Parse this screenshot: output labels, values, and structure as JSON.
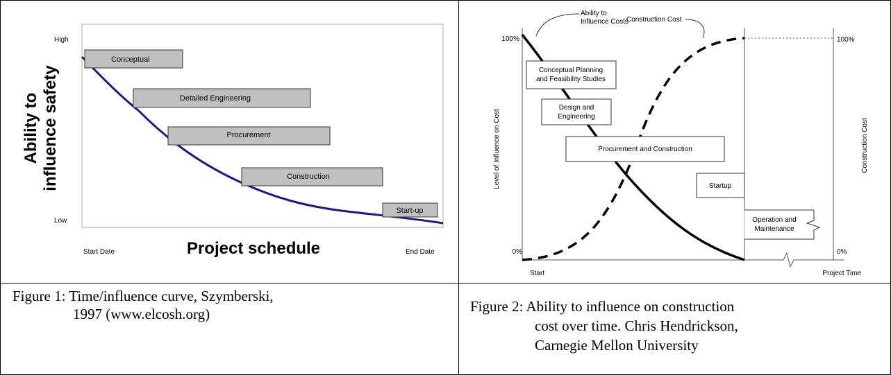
{
  "figure1": {
    "y_high": "High",
    "y_low": "Low",
    "y_label": [
      "Ability to",
      "influence safety"
    ],
    "x_start": "Start Date",
    "x_label": "Project schedule",
    "x_end": "End Date",
    "phases": [
      "Conceptual",
      "Detailed Engineering",
      "Procurement",
      "Construction",
      "Start-up"
    ],
    "caption": [
      "Figure 1: Time/influence curve, Szymberski,",
      "1997 (www.elcosh.org)"
    ]
  },
  "figure2": {
    "left_top": "100%",
    "left_bottom": "0%",
    "right_top": "100%",
    "right_bottom": "0%",
    "y_label": "Level of Influence on Cost",
    "y2_label": "Construction Cost",
    "x_start": "Start",
    "x_end": "Project Time",
    "annotation_influence": [
      "Ability to",
      "Influence Costs"
    ],
    "annotation_cost": "Construction Cost",
    "phases": [
      [
        "Conceptual Planning",
        "and Feasibility Studies"
      ],
      [
        "Design and",
        "Engineering"
      ],
      [
        "Procurement and Construction"
      ],
      [
        "Startup"
      ],
      [
        "Operation and",
        "Maintenance"
      ]
    ],
    "caption": [
      "Figure 2: Ability to influence on construction",
      "cost over time. Chris Hendrickson,",
      "Carnegie Mellon University"
    ]
  }
}
